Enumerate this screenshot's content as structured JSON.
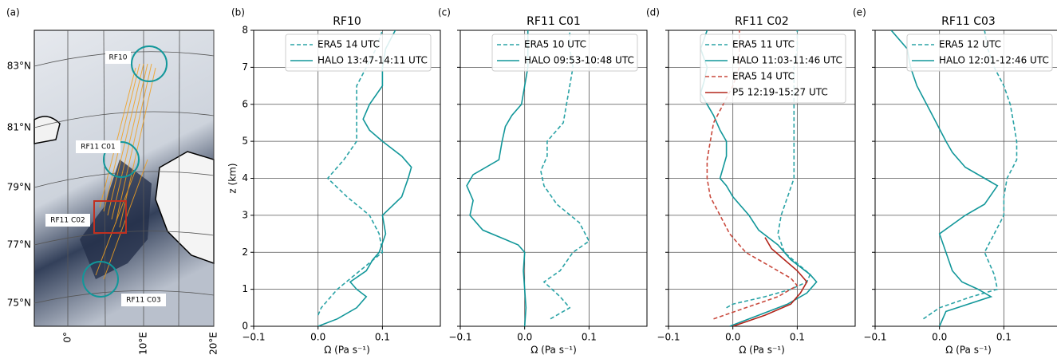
{
  "map": {
    "panel_label": "(a)",
    "lat_labels": [
      "83°N",
      "81°N",
      "79°N",
      "77°N",
      "75°N"
    ],
    "lon_labels": [
      "0°",
      "10°E",
      "20°E"
    ],
    "flight_labels": [
      "RF10",
      "RF11 C01",
      "RF11 C02",
      "RF11 C03"
    ]
  },
  "chart_data": [
    {
      "type": "line",
      "panel_label": "(b)",
      "title": "RF10",
      "x_label": "Ω (Pa s⁻¹)",
      "y_label": "z (km)",
      "xlim": [
        -0.1,
        0.19
      ],
      "ylim": [
        0,
        8
      ],
      "xticks": [
        {
          "value": -0.1,
          "label": "−0.1"
        },
        {
          "value": 0,
          "label": "0.0"
        },
        0.1
      ],
      "yticks": [
        0,
        1,
        2,
        3,
        4,
        5,
        6,
        7,
        8
      ],
      "ytick_labels": true,
      "grid": true,
      "legend": "upper right",
      "series": [
        {
          "name": "ERA5 14 UTC",
          "color": "#2aa3a6",
          "dashed": true,
          "x": [
            0.0,
            0.005,
            0.03,
            0.065,
            0.1,
            0.095,
            0.08,
            0.045,
            0.015,
            0.04,
            0.06,
            0.06,
            0.06,
            0.06,
            0.075,
            0.09,
            0.1
          ],
          "y": [
            0.3,
            0.5,
            1,
            1.5,
            2,
            2.5,
            3,
            3.5,
            4,
            4.5,
            5,
            5.5,
            6,
            6.5,
            7,
            7.5,
            8
          ]
        },
        {
          "name": "HALO 13:47-14:11 UTC",
          "color": "#12979a",
          "dashed": false,
          "x": [
            0.0,
            0.03,
            0.06,
            0.075,
            0.06,
            0.05,
            0.075,
            0.085,
            0.095,
            0.105,
            0.1,
            0.13,
            0.14,
            0.145,
            0.13,
            0.1,
            0.08,
            0.07,
            0.08,
            0.1,
            0.1,
            0.105,
            0.12
          ],
          "y": [
            0,
            0.2,
            0.5,
            0.8,
            1,
            1.2,
            1.5,
            1.8,
            2,
            2.5,
            3,
            3.5,
            4,
            4.3,
            4.6,
            5,
            5.3,
            5.6,
            6,
            6.5,
            7,
            7.5,
            8
          ]
        }
      ]
    },
    {
      "type": "line",
      "panel_label": "(c)",
      "title": "RF11 C01",
      "x_label": "Ω (Pa s⁻¹)",
      "xlim": [
        -0.1,
        0.19
      ],
      "ylim": [
        0,
        8
      ],
      "xticks": [
        {
          "value": -0.1,
          "label": "−0.1"
        },
        {
          "value": 0,
          "label": "0.0"
        },
        0.1
      ],
      "yticks": [
        0,
        1,
        2,
        3,
        4,
        5,
        6,
        7,
        8
      ],
      "ytick_labels": false,
      "grid": true,
      "legend": "upper right",
      "series": [
        {
          "name": "ERA5 10 UTC",
          "color": "#2aa3a6",
          "dashed": true,
          "x": [
            0.04,
            0.07,
            0.055,
            0.03,
            0.055,
            0.075,
            0.1,
            0.085,
            0.05,
            0.03,
            0.025,
            0.035,
            0.035,
            0.06,
            0.065,
            0.07,
            0.075,
            0.07,
            0.07
          ],
          "y": [
            0.2,
            0.5,
            0.8,
            1.2,
            1.5,
            2,
            2.3,
            2.8,
            3.3,
            3.8,
            4.2,
            4.6,
            5,
            5.5,
            6,
            6.5,
            7,
            7.5,
            8
          ]
        },
        {
          "name": "HALO 09:53-10:48 UTC",
          "color": "#12979a",
          "dashed": false,
          "x": [
            0.0,
            0.002,
            0.0,
            -0.002,
            0.0,
            -0.01,
            -0.065,
            -0.085,
            -0.08,
            -0.09,
            -0.08,
            -0.04,
            -0.035,
            -0.03,
            -0.02,
            -0.005,
            0.0,
            0.005,
            0.005,
            0.005
          ],
          "y": [
            0,
            0.5,
            1,
            1.5,
            2,
            2.2,
            2.6,
            3,
            3.4,
            3.8,
            4.1,
            4.5,
            5,
            5.4,
            5.7,
            6,
            6.5,
            7,
            7.5,
            8
          ]
        }
      ]
    },
    {
      "type": "line",
      "panel_label": "(d)",
      "title": "RF11 C02",
      "x_label": "Ω (Pa s⁻¹)",
      "xlim": [
        -0.1,
        0.19
      ],
      "ylim": [
        0,
        8
      ],
      "xticks": [
        {
          "value": -0.1,
          "label": "−0.1"
        },
        {
          "value": 0,
          "label": "0.0"
        },
        0.1
      ],
      "yticks": [
        0,
        1,
        2,
        3,
        4,
        5,
        6,
        7,
        8
      ],
      "ytick_labels": false,
      "grid": true,
      "legend": "upper right",
      "series": [
        {
          "name": "ERA5 11 UTC",
          "color": "#2aa3a6",
          "dashed": true,
          "x": [
            -0.01,
            0.0,
            0.05,
            0.09,
            0.115,
            0.12,
            0.1,
            0.08,
            0.07,
            0.075,
            0.085,
            0.095,
            0.095,
            0.095,
            0.095,
            0.095,
            0.095,
            0.095,
            0.1,
            0.1
          ],
          "y": [
            0.5,
            0.6,
            0.8,
            1,
            1.2,
            1.4,
            1.7,
            2,
            2.5,
            3,
            3.5,
            4,
            4.5,
            5,
            5.5,
            6,
            6.5,
            7,
            7.5,
            8
          ]
        },
        {
          "name": "HALO 11:03-11:46 UTC",
          "color": "#12979a",
          "dashed": false,
          "x": [
            -0.005,
            0.04,
            0.085,
            0.115,
            0.13,
            0.12,
            0.09,
            0.07,
            0.04,
            0.025,
            0.0,
            -0.01,
            -0.02,
            -0.015,
            -0.01,
            -0.01,
            -0.02,
            -0.03,
            -0.04,
            -0.05,
            -0.045,
            -0.04,
            -0.05,
            -0.04
          ],
          "y": [
            0,
            0.3,
            0.6,
            0.9,
            1.2,
            1.4,
            1.8,
            2.2,
            2.6,
            3,
            3.5,
            3.8,
            4,
            4.3,
            4.6,
            5,
            5.3,
            5.7,
            6,
            6.3,
            6.6,
            7,
            7.5,
            8
          ]
        },
        {
          "name": "ERA5 14 UTC",
          "color": "#c9493d",
          "dashed": true,
          "x": [
            -0.03,
            0.02,
            0.07,
            0.1,
            0.09,
            0.05,
            0.02,
            -0.005,
            -0.02,
            -0.035,
            -0.04,
            -0.04,
            -0.035,
            -0.03,
            -0.015,
            0.0,
            0.01,
            0.01,
            0.01
          ],
          "y": [
            0.2,
            0.5,
            0.8,
            1.1,
            1.3,
            1.7,
            2,
            2.5,
            3,
            3.5,
            4,
            4.5,
            5,
            5.5,
            6,
            6.5,
            7,
            7.5,
            8
          ]
        },
        {
          "name": "P5 12:19-15:27 UTC",
          "color": "#b3261c",
          "dashed": false,
          "x": [
            0.0,
            0.05,
            0.09,
            0.105,
            0.115,
            0.1,
            0.08,
            0.06,
            0.05
          ],
          "y": [
            0,
            0.3,
            0.6,
            0.9,
            1.2,
            1.5,
            1.8,
            2.1,
            2.4
          ]
        }
      ]
    },
    {
      "type": "line",
      "panel_label": "(e)",
      "title": "RF11 C03",
      "x_label": "Ω (Pa s⁻¹)",
      "xlim": [
        -0.1,
        0.19
      ],
      "ylim": [
        0,
        8
      ],
      "xticks": [
        {
          "value": -0.1,
          "label": "−0.1"
        },
        {
          "value": 0,
          "label": "0.0"
        },
        0.1
      ],
      "yticks": [
        0,
        1,
        2,
        3,
        4,
        5,
        6,
        7,
        8
      ],
      "ytick_labels": false,
      "grid": true,
      "legend": "upper right",
      "series": [
        {
          "name": "ERA5 12 UTC",
          "color": "#2aa3a6",
          "dashed": true,
          "x": [
            -0.025,
            0.0,
            0.05,
            0.09,
            0.085,
            0.075,
            0.07,
            0.085,
            0.1,
            0.1,
            0.105,
            0.12,
            0.12,
            0.115,
            0.11,
            0.1,
            0.085,
            0.075,
            0.07
          ],
          "y": [
            0.2,
            0.5,
            0.8,
            1,
            1.4,
            1.8,
            2,
            2.5,
            3,
            3.5,
            4,
            4.5,
            5,
            5.5,
            6,
            6.5,
            7,
            7.5,
            8
          ]
        },
        {
          "name": "HALO 12:01-12:46 UTC",
          "color": "#12979a",
          "dashed": false,
          "x": [
            0.0,
            0.01,
            0.08,
            0.06,
            0.035,
            0.02,
            0.01,
            0.0,
            0.04,
            0.07,
            0.09,
            0.07,
            0.04,
            0.02,
            0.01,
            -0.005,
            -0.02,
            -0.035,
            -0.045,
            -0.05,
            -0.075
          ],
          "y": [
            0,
            0.4,
            0.8,
            1,
            1.2,
            1.5,
            2,
            2.5,
            3,
            3.3,
            3.8,
            4,
            4.3,
            4.7,
            5,
            5.5,
            6,
            6.5,
            7,
            7.5,
            8
          ]
        }
      ]
    }
  ]
}
